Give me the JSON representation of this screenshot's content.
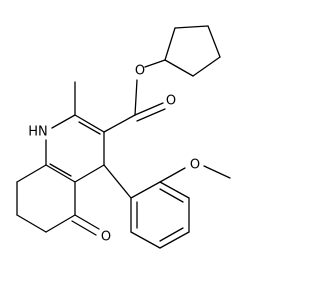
{
  "labels": {
    "amine": "HN",
    "ester_oxygen": "O",
    "carbonyl_oxygen": "O",
    "ketone_oxygen": "O",
    "methoxy_oxygen": "O"
  }
}
